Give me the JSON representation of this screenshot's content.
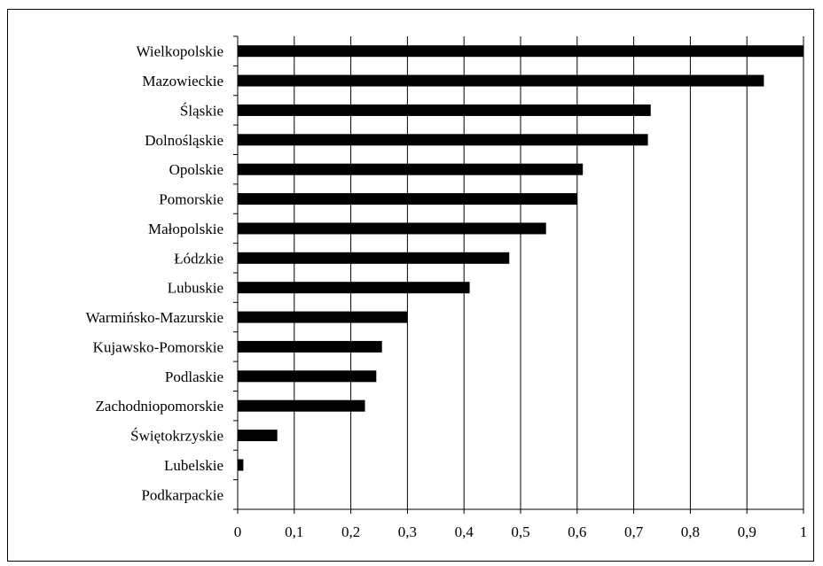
{
  "chart_data": {
    "type": "bar",
    "orientation": "horizontal",
    "title": "",
    "xlabel": "",
    "ylabel": "",
    "categories": [
      "Wielkopolskie",
      "Mazowieckie",
      "Śląskie",
      "Dolnośląskie",
      "Opolskie",
      "Pomorskie",
      "Małopolskie",
      "Łódzkie",
      "Lubuskie",
      "Warmińsko-Mazurskie",
      "Kujawsko-Pomorskie",
      "Podlaskie",
      "Zachodniopomorskie",
      "Świętokrzyskie",
      "Lubelskie",
      "Podkarpackie"
    ],
    "values": [
      1.0,
      0.93,
      0.73,
      0.725,
      0.61,
      0.6,
      0.545,
      0.48,
      0.41,
      0.3,
      0.255,
      0.245,
      0.225,
      0.07,
      0.01,
      0.0
    ],
    "xlim": [
      0,
      1
    ],
    "xticks": [
      "0",
      "0,1",
      "0,2",
      "0,3",
      "0,4",
      "0,5",
      "0,6",
      "0,7",
      "0,8",
      "0,9",
      "1"
    ],
    "grid": "vertical",
    "bar_color": "#000000",
    "legend": "none"
  }
}
